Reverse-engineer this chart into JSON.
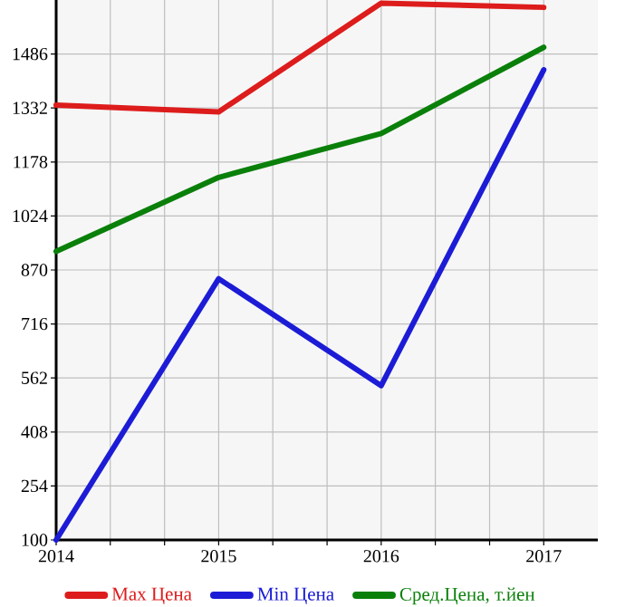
{
  "chart_data": {
    "type": "line",
    "x": [
      2014,
      2015,
      2016,
      2017
    ],
    "series": [
      {
        "name": "Max Цена",
        "color": "#dd1c1c",
        "values": [
          1340,
          1321,
          1631,
          1619
        ]
      },
      {
        "name": "Min Цена",
        "color": "#1c1cd6",
        "values": [
          100,
          845,
          540,
          1441
        ]
      },
      {
        "name": "Сред.Цена, т.йен",
        "color": "#0a800a",
        "values": [
          923,
          1134,
          1259,
          1505
        ]
      }
    ],
    "xlim": [
      2014,
      2017.333
    ],
    "xticks": [
      2014,
      {
        "value": 2014.333,
        "label": null
      },
      {
        "value": 2014.667,
        "label": null
      },
      2015,
      {
        "value": 2015.333,
        "label": null
      },
      {
        "value": 2015.667,
        "label": null
      },
      2016,
      {
        "value": 2016.333,
        "label": null
      },
      {
        "value": 2016.667,
        "label": null
      },
      2017
    ],
    "ylim": [
      100,
      1640
    ],
    "yticks": [
      100,
      254,
      408,
      562,
      716,
      870,
      1024,
      1178,
      1332,
      1486
    ],
    "grid": true,
    "legend": "bottom",
    "marker": "none",
    "line_style": "solid"
  }
}
